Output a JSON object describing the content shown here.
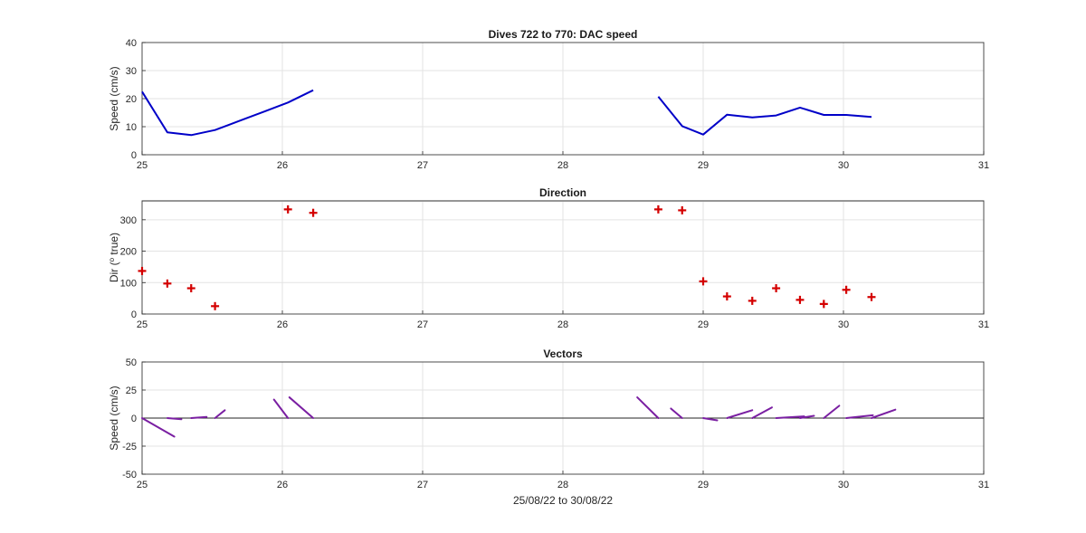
{
  "chart_data": [
    {
      "type": "line",
      "title": "Dives 722 to 770: DAC speed",
      "xlabel": "",
      "ylabel": "Speed (cm/s)",
      "xlim": [
        25,
        31
      ],
      "ylim": [
        0,
        40
      ],
      "xticks": [
        "25",
        "26",
        "27",
        "28",
        "29",
        "30",
        "31"
      ],
      "yticks": [
        "0",
        "10",
        "20",
        "30",
        "40"
      ],
      "grid": true,
      "color": "#0000c8",
      "series": [
        {
          "points": [
            [
              25.0,
              22.5
            ],
            [
              25.18,
              8.0
            ],
            [
              25.35,
              7.0
            ],
            [
              25.52,
              8.8
            ],
            [
              25.7,
              12.2
            ],
            [
              25.87,
              15.4
            ],
            [
              26.04,
              18.6
            ],
            [
              26.22,
              23.0
            ]
          ]
        },
        {
          "points": [
            [
              28.68,
              20.7
            ],
            [
              28.85,
              10.2
            ],
            [
              29.0,
              7.2
            ],
            [
              29.17,
              14.3
            ],
            [
              29.35,
              13.3
            ],
            [
              29.52,
              14.0
            ],
            [
              29.69,
              16.8
            ],
            [
              29.86,
              14.2
            ],
            [
              30.02,
              14.2
            ],
            [
              30.2,
              13.5
            ]
          ]
        }
      ]
    },
    {
      "type": "scatter",
      "title": "Direction",
      "xlabel": "",
      "ylabel": "Dir (o true)",
      "ylabel_main": "Dir (",
      "ylabel_sup": "o",
      "ylabel_end": " true)",
      "xlim": [
        25,
        31
      ],
      "ylim": [
        0,
        360
      ],
      "xticks": [
        "25",
        "26",
        "27",
        "28",
        "29",
        "30",
        "31"
      ],
      "yticks": [
        "0",
        "100",
        "200",
        "300"
      ],
      "grid": true,
      "marker": "+",
      "color": "#d40000",
      "points": [
        [
          25.0,
          137
        ],
        [
          25.18,
          97
        ],
        [
          25.35,
          82
        ],
        [
          25.52,
          25
        ],
        [
          26.04,
          333
        ],
        [
          26.22,
          322
        ],
        [
          28.68,
          333
        ],
        [
          28.85,
          330
        ],
        [
          29.0,
          104
        ],
        [
          29.17,
          56
        ],
        [
          29.35,
          42
        ],
        [
          29.52,
          82
        ],
        [
          29.69,
          45
        ],
        [
          29.86,
          32
        ],
        [
          30.02,
          77
        ],
        [
          30.2,
          54
        ]
      ]
    },
    {
      "type": "vector",
      "title": "Vectors",
      "xlabel": "25/08/22 to 30/08/22",
      "ylabel": "Speed (cm/s)",
      "xlim": [
        25,
        31
      ],
      "ylim": [
        -50,
        50
      ],
      "xticks": [
        "25",
        "26",
        "27",
        "28",
        "29",
        "30",
        "31"
      ],
      "yticks": [
        "-50",
        "-25",
        "0",
        "25",
        "50"
      ],
      "grid": true,
      "color": "#7a1fa2",
      "vectors": [
        [
          25.0,
          0.23,
          -16.5
        ],
        [
          25.18,
          0.1,
          -1.0
        ],
        [
          25.35,
          0.11,
          1.0
        ],
        [
          25.52,
          0.07,
          7.0
        ],
        [
          26.04,
          -0.1,
          16.5
        ],
        [
          26.22,
          -0.17,
          18.5
        ],
        [
          28.68,
          -0.15,
          18.5
        ],
        [
          28.85,
          -0.08,
          8.5
        ],
        [
          29.0,
          0.1,
          -2.0
        ],
        [
          29.17,
          0.18,
          7.0
        ],
        [
          29.35,
          0.14,
          9.5
        ],
        [
          29.52,
          0.2,
          1.5
        ],
        [
          29.69,
          0.1,
          2.0
        ],
        [
          29.86,
          0.11,
          11.0
        ],
        [
          30.02,
          0.19,
          2.5
        ],
        [
          30.2,
          0.17,
          7.5
        ]
      ]
    }
  ]
}
